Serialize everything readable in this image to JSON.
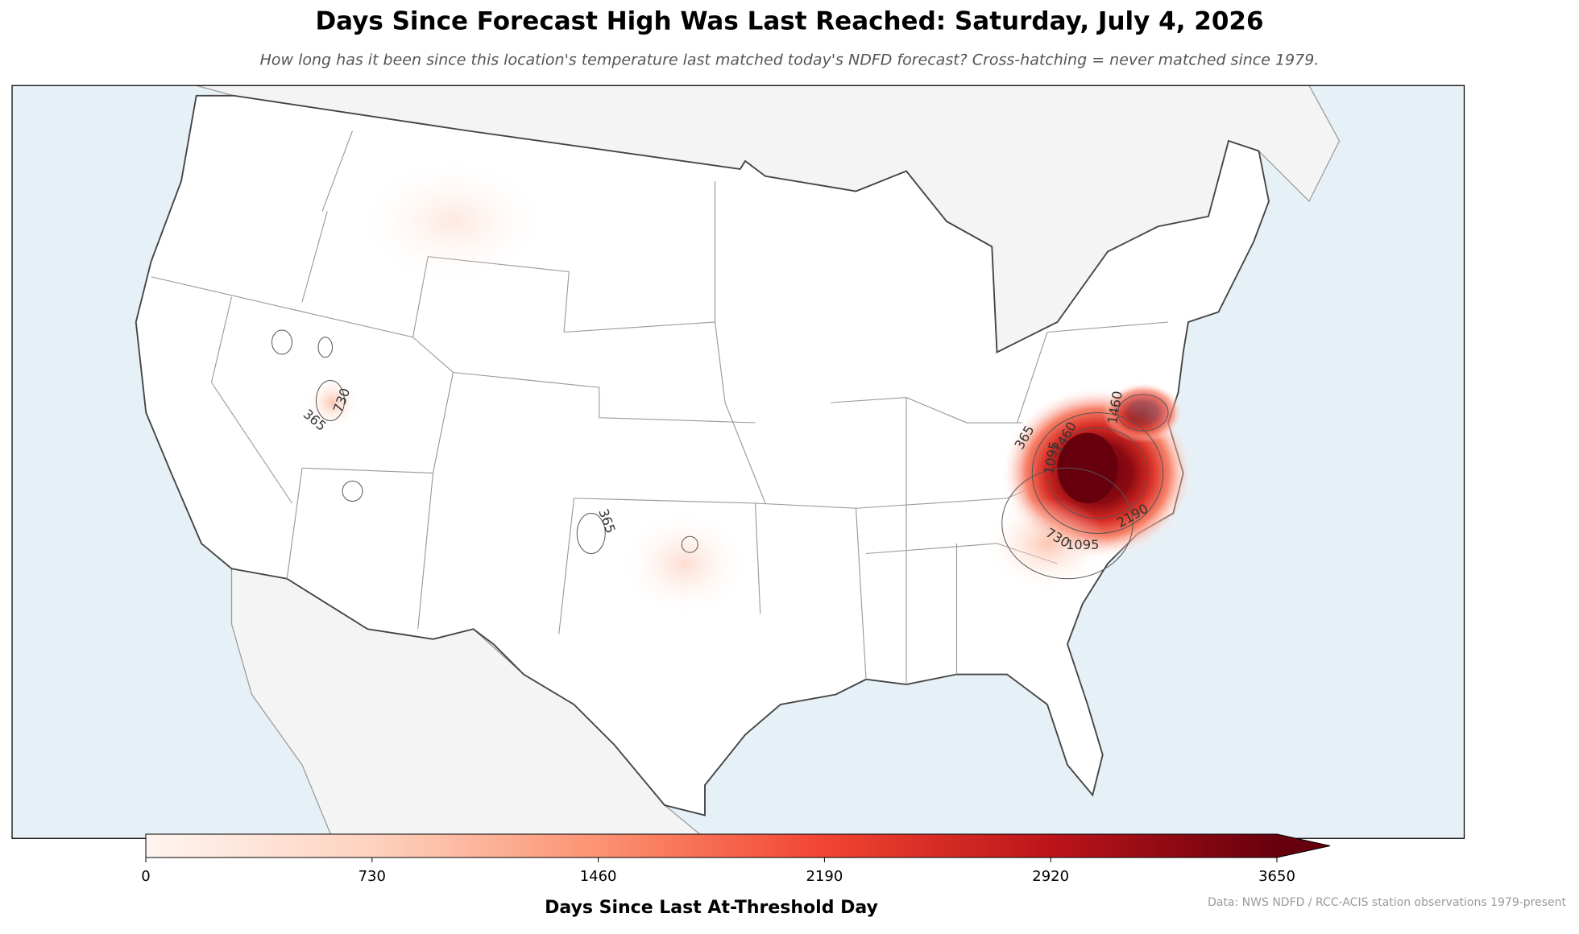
{
  "header": {
    "title": "Days Since Forecast High Was Last Reached: Saturday, July 4, 2026",
    "subtitle": "How long has it been since this location's temperature last matched today's NDFD forecast? Cross-hatching = never matched since 1979."
  },
  "map": {
    "contour_labels": [
      "365",
      "730",
      "365",
      "1460",
      "1095",
      "1460",
      "730",
      "1095",
      "2190",
      "365"
    ]
  },
  "colorbar": {
    "label": "Days Since Last At-Threshold Day",
    "lim": [
      0,
      3650
    ],
    "ticks": [
      0,
      730,
      1460,
      2190,
      2920,
      3650
    ],
    "extend": "max"
  },
  "footer": {
    "source": "Data: NWS NDFD / RCC-ACIS station observations 1979-present"
  }
}
